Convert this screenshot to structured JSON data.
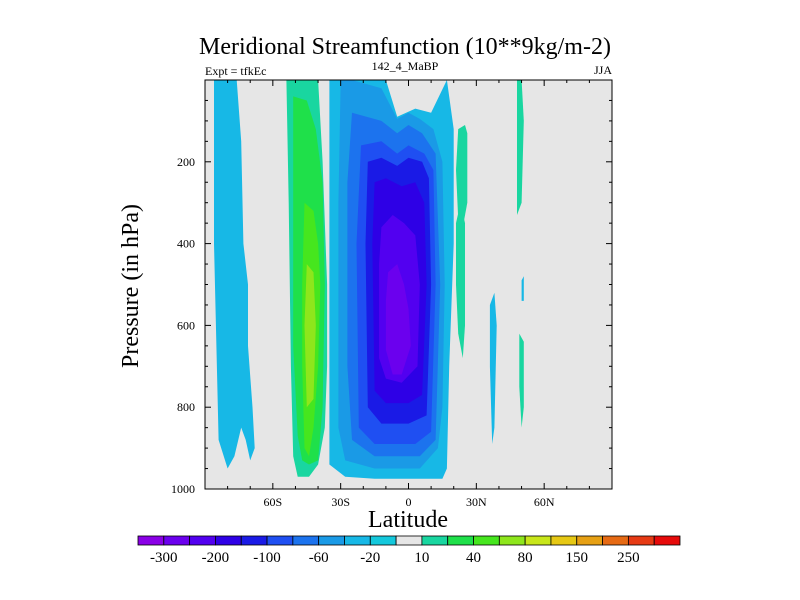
{
  "chart_data": {
    "type": "heatmap",
    "title": "Meridional Streamfunction (10**9kg/m-2)",
    "left_label": "Expt = tfkEc",
    "center_label": "142_4_MaBP",
    "right_label": "JJA",
    "xlabel": "Latitude",
    "ylabel": "Pressure (in hPa)",
    "x_ticks": [
      {
        "value": -60,
        "label": "60S"
      },
      {
        "value": -30,
        "label": "30S"
      },
      {
        "value": 0,
        "label": "0"
      },
      {
        "value": 30,
        "label": "30N"
      },
      {
        "value": 60,
        "label": "60N"
      }
    ],
    "y_ticks": [
      {
        "value": 200,
        "label": "200"
      },
      {
        "value": 400,
        "label": "400"
      },
      {
        "value": 600,
        "label": "600"
      },
      {
        "value": 800,
        "label": "800"
      },
      {
        "value": 1000,
        "label": "1000"
      }
    ],
    "xlim": [
      -90,
      90
    ],
    "ylim": [
      1000,
      0
    ],
    "background_color": "#e6e6e6",
    "colorbar": {
      "levels": [
        -300,
        -250,
        -200,
        -150,
        -100,
        -80,
        -60,
        -40,
        -20,
        -10,
        10,
        20,
        40,
        60,
        80,
        100,
        150,
        200,
        250,
        300
      ],
      "labels": [
        {
          "after_level": -300,
          "text": "-300"
        },
        {
          "after_level": -200,
          "text": "-200"
        },
        {
          "after_level": -100,
          "text": "-100"
        },
        {
          "after_level": -60,
          "text": "-60"
        },
        {
          "after_level": -20,
          "text": "-20"
        },
        {
          "after_level": 10,
          "text": "10"
        },
        {
          "after_level": 40,
          "text": "40"
        },
        {
          "after_level": 80,
          "text": "80"
        },
        {
          "after_level": 150,
          "text": "150"
        },
        {
          "after_level": 250,
          "text": "250"
        }
      ],
      "colors": [
        "#8a00e6",
        "#6b00ee",
        "#5200f0",
        "#2e00e6",
        "#1a1ae6",
        "#1f4ff2",
        "#1c73ee",
        "#1a9ae6",
        "#17b8e6",
        "#14c8dc",
        "#e6e6e6",
        "#19d6a0",
        "#1fe04a",
        "#46e61e",
        "#8ee61c",
        "#c8e61a",
        "#e6c814",
        "#e6a014",
        "#e66a14",
        "#e63a14",
        "#e60a0a"
      ]
    },
    "regions": [
      {
        "name": "south-polar-cell",
        "value_class": "-20",
        "color": "#17b8e6",
        "lat": [
          -86,
          -80,
          -76,
          -74,
          -73,
          -71,
          -71,
          -69,
          -68,
          -70,
          -72,
          -74,
          -77,
          -80,
          -84,
          -86
        ],
        "p": [
          0,
          0,
          0,
          150,
          400,
          500,
          650,
          800,
          900,
          930,
          880,
          850,
          920,
          950,
          880,
          400
        ]
      },
      {
        "name": "southern-cell-outer",
        "value_class": "10",
        "color": "#19d6a0",
        "lat": [
          -53,
          -40,
          -38,
          -36,
          -36,
          -37,
          -40,
          -44,
          -49,
          -51,
          -52,
          -53,
          -54
        ],
        "p": [
          0,
          0,
          200,
          500,
          700,
          850,
          940,
          970,
          970,
          920,
          700,
          300,
          0
        ]
      },
      {
        "name": "southern-cell-20",
        "value_class": "20",
        "color": "#1fe04a",
        "lat": [
          -51,
          -45,
          -41,
          -38,
          -37,
          -38,
          -40,
          -44,
          -47,
          -49,
          -51,
          -51
        ],
        "p": [
          40,
          50,
          120,
          250,
          500,
          800,
          930,
          940,
          930,
          870,
          650,
          250
        ]
      },
      {
        "name": "southern-cell-40",
        "value_class": "40",
        "color": "#46e61e",
        "lat": [
          -46,
          -42,
          -40,
          -39,
          -40,
          -42,
          -44,
          -46,
          -47,
          -47
        ],
        "p": [
          300,
          320,
          400,
          500,
          700,
          850,
          920,
          900,
          700,
          500
        ]
      },
      {
        "name": "southern-cell-60",
        "value_class": "60",
        "color": "#8ee61c",
        "lat": [
          -45,
          -42,
          -41,
          -42,
          -45,
          -46
        ],
        "p": [
          450,
          470,
          600,
          780,
          800,
          600
        ]
      },
      {
        "name": "hadley-cell-20",
        "value_class": "-20",
        "color": "#17b8e6",
        "lat": [
          -35,
          -30,
          -20,
          -10,
          -5,
          3,
          10,
          17,
          20,
          20,
          18,
          17,
          15,
          10,
          0,
          -15,
          -28,
          -35,
          -35
        ],
        "p": [
          0,
          0,
          0,
          0,
          90,
          70,
          80,
          0,
          120,
          400,
          700,
          950,
          975,
          975,
          975,
          975,
          970,
          940,
          500
        ]
      },
      {
        "name": "hadley-cell-40",
        "value_class": "-40",
        "color": "#1a9ae6",
        "lat": [
          -30,
          -25,
          -12,
          -5,
          0,
          5,
          11,
          15,
          16,
          15,
          13,
          5,
          -15,
          -28,
          -31,
          -31
        ],
        "p": [
          0,
          0,
          20,
          95,
          80,
          95,
          120,
          200,
          500,
          800,
          900,
          950,
          950,
          930,
          850,
          300
        ]
      },
      {
        "name": "hadley-cell-60",
        "value_class": "-60",
        "color": "#1c73ee",
        "lat": [
          -25,
          -12,
          -5,
          0,
          6,
          12,
          14,
          12,
          5,
          -15,
          -25,
          -27,
          -27
        ],
        "p": [
          80,
          100,
          130,
          110,
          130,
          180,
          500,
          880,
          920,
          920,
          880,
          700,
          250
        ]
      },
      {
        "name": "hadley-cell-80",
        "value_class": "-80",
        "color": "#1f4ff2",
        "lat": [
          -21,
          -12,
          -5,
          0,
          7,
          11,
          12,
          10,
          3,
          -15,
          -22,
          -23
        ],
        "p": [
          160,
          150,
          180,
          160,
          180,
          220,
          500,
          860,
          890,
          890,
          850,
          400
        ]
      },
      {
        "name": "hadley-cell-100",
        "value_class": "-100",
        "color": "#1a1ae6",
        "lat": [
          -18,
          -12,
          -5,
          0,
          6,
          9,
          10,
          8,
          0,
          -12,
          -18,
          -19
        ],
        "p": [
          200,
          190,
          210,
          190,
          200,
          240,
          500,
          820,
          840,
          840,
          800,
          400
        ]
      },
      {
        "name": "hadley-cell-150",
        "value_class": "-150",
        "color": "#2e00e6",
        "lat": [
          -15,
          -10,
          -3,
          3,
          7,
          8,
          6,
          0,
          -10,
          -15,
          -16
        ],
        "p": [
          250,
          240,
          260,
          250,
          300,
          500,
          770,
          790,
          790,
          760,
          400
        ]
      },
      {
        "name": "hadley-cell-200",
        "value_class": "-200",
        "color": "#5200f0",
        "lat": [
          -12,
          -7,
          -2,
          3,
          5,
          4,
          -3,
          -10,
          -13,
          -13
        ],
        "p": [
          360,
          330,
          350,
          380,
          500,
          700,
          740,
          730,
          680,
          450
        ]
      },
      {
        "name": "hadley-cell-250",
        "value_class": "-250",
        "color": "#6b00ee",
        "lat": [
          -9,
          -5,
          -2,
          0,
          1,
          -3,
          -7,
          -10,
          -10
        ],
        "p": [
          470,
          450,
          500,
          560,
          650,
          720,
          720,
          660,
          540
        ]
      },
      {
        "name": "nh-cell-a",
        "value_class": "10",
        "color": "#19d6a0",
        "lat": [
          21,
          23,
          25,
          25,
          24,
          22,
          21
        ],
        "p": [
          350,
          300,
          350,
          600,
          680,
          620,
          500
        ]
      },
      {
        "name": "nh-cell-b",
        "value_class": "10",
        "color": "#19d6a0",
        "lat": [
          22,
          25,
          26,
          26,
          24,
          22,
          21
        ],
        "p": [
          120,
          110,
          130,
          300,
          360,
          340,
          220
        ]
      },
      {
        "name": "nh-cell-c",
        "value_class": "-20",
        "color": "#17b8e6",
        "lat": [
          36,
          38,
          39,
          38,
          37,
          36
        ],
        "p": [
          550,
          520,
          600,
          850,
          890,
          700
        ]
      },
      {
        "name": "nh-cell-d",
        "value_class": "10",
        "color": "#19d6a0",
        "lat": [
          48,
          50,
          51,
          50,
          48,
          48
        ],
        "p": [
          0,
          0,
          100,
          300,
          330,
          150
        ]
      },
      {
        "name": "nh-cell-e",
        "value_class": "10",
        "color": "#19d6a0",
        "lat": [
          49,
          51,
          51,
          50,
          49
        ],
        "p": [
          620,
          640,
          800,
          850,
          750
        ]
      },
      {
        "name": "nh-cell-f",
        "value_class": "-20",
        "color": "#17b8e6",
        "lat": [
          50,
          51,
          51,
          50
        ],
        "p": [
          490,
          480,
          540,
          540
        ]
      }
    ]
  }
}
